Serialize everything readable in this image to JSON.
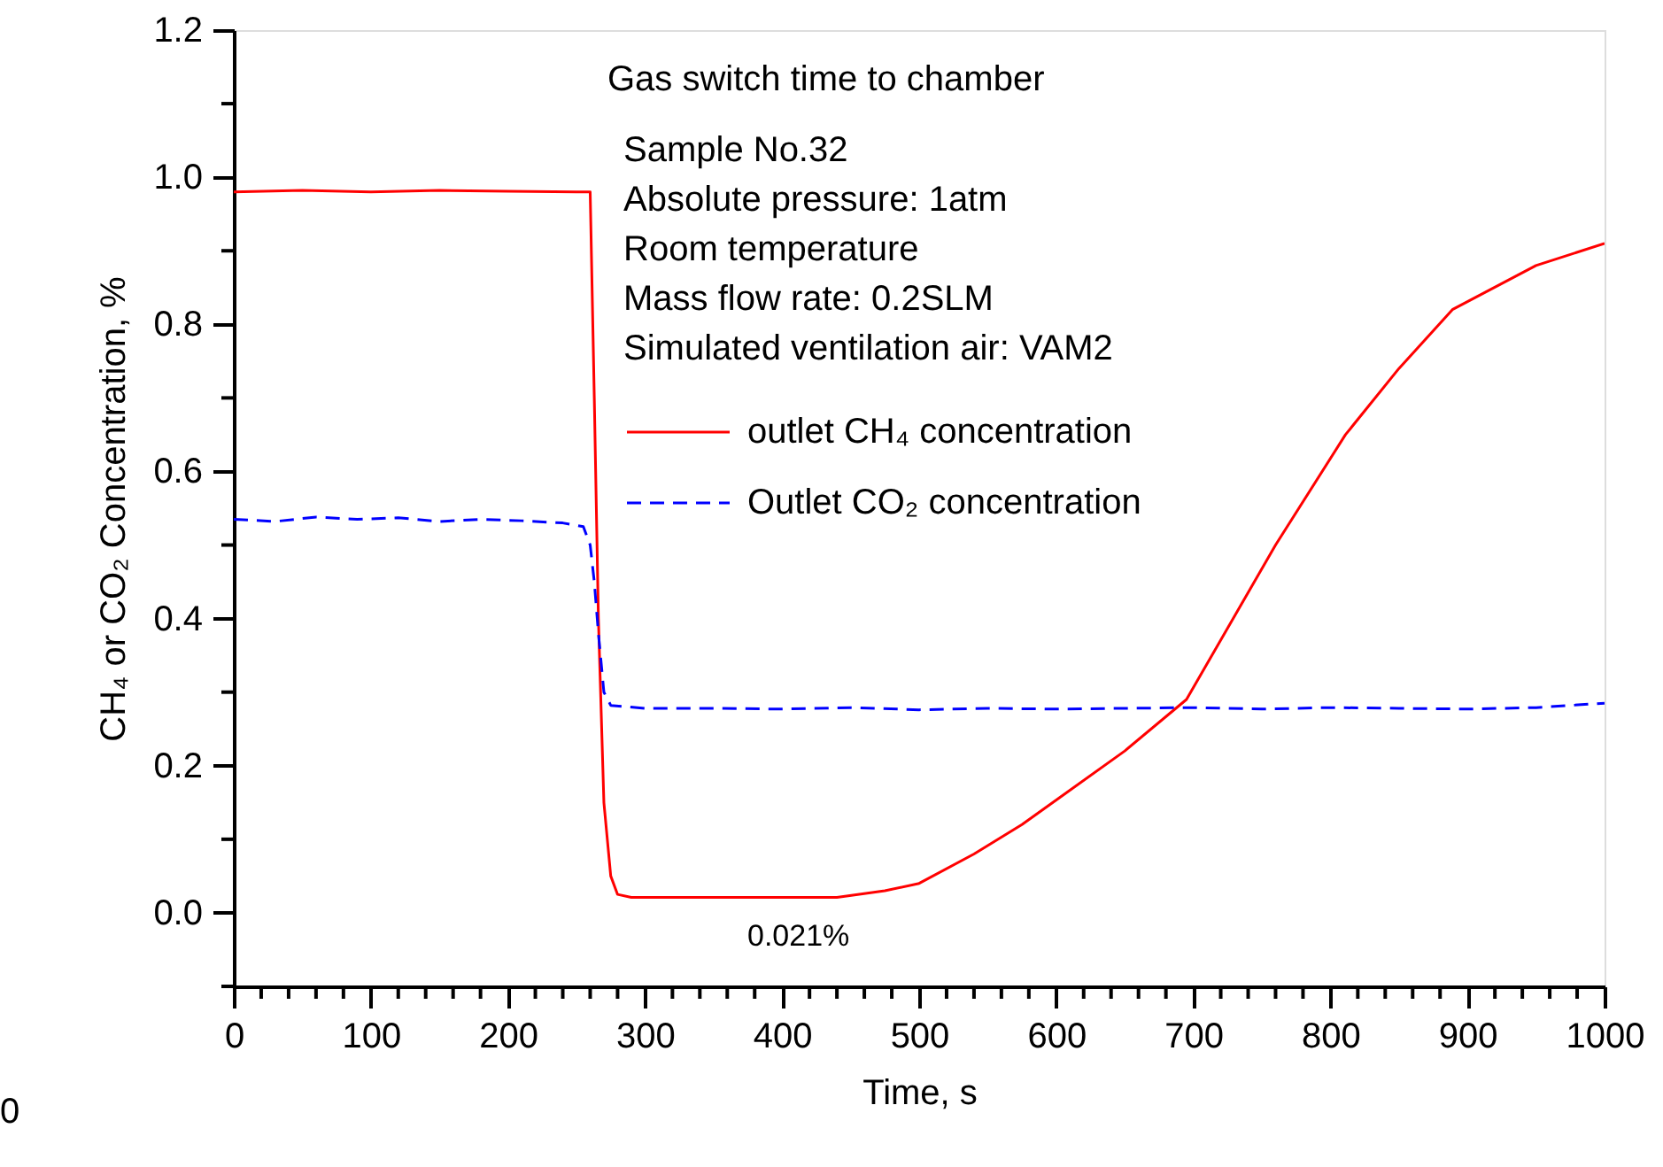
{
  "chart_data": {
    "type": "line",
    "xlabel": "Time, s",
    "ylabel": "CH₄ or CO₂ Concentration, %",
    "xlim": [
      0,
      1000
    ],
    "ylim": [
      -0.1,
      1.2
    ],
    "xticks": [
      0,
      {
        "value": 20,
        "label": null
      },
      {
        "value": 40,
        "label": null
      },
      {
        "value": 60,
        "label": null
      },
      {
        "value": 80,
        "label": null
      },
      100,
      {
        "value": 120,
        "label": null
      },
      {
        "value": 140,
        "label": null
      },
      {
        "value": 160,
        "label": null
      },
      {
        "value": 180,
        "label": null
      },
      200,
      {
        "value": 220,
        "label": null
      },
      {
        "value": 240,
        "label": null
      },
      {
        "value": 260,
        "label": null
      },
      {
        "value": 280,
        "label": null
      },
      300,
      {
        "value": 320,
        "label": null
      },
      {
        "value": 340,
        "label": null
      },
      {
        "value": 360,
        "label": null
      },
      {
        "value": 380,
        "label": null
      },
      400,
      {
        "value": 420,
        "label": null
      },
      {
        "value": 440,
        "label": null
      },
      {
        "value": 460,
        "label": null
      },
      {
        "value": 480,
        "label": null
      },
      500,
      {
        "value": 520,
        "label": null
      },
      {
        "value": 540,
        "label": null
      },
      {
        "value": 560,
        "label": null
      },
      {
        "value": 580,
        "label": null
      },
      600,
      {
        "value": 620,
        "label": null
      },
      {
        "value": 640,
        "label": null
      },
      {
        "value": 660,
        "label": null
      },
      {
        "value": 680,
        "label": null
      },
      700,
      {
        "value": 720,
        "label": null
      },
      {
        "value": 740,
        "label": null
      },
      {
        "value": 760,
        "label": null
      },
      {
        "value": 780,
        "label": null
      },
      800,
      {
        "value": 820,
        "label": null
      },
      {
        "value": 840,
        "label": null
      },
      {
        "value": 860,
        "label": null
      },
      {
        "value": 880,
        "label": null
      },
      900,
      {
        "value": 920,
        "label": null
      },
      {
        "value": 940,
        "label": null
      },
      {
        "value": 960,
        "label": null
      },
      {
        "value": 980,
        "label": null
      },
      1000
    ],
    "yticks": [
      {
        "value": -0.1,
        "label": null
      },
      {
        "value": 0,
        "label": "0.0"
      },
      {
        "value": 0.1,
        "label": null
      },
      0.2,
      {
        "value": 0.3,
        "label": null
      },
      0.4,
      {
        "value": 0.5,
        "label": null
      },
      0.6,
      {
        "value": 0.7,
        "label": null
      },
      0.8,
      {
        "value": 0.9,
        "label": null
      },
      {
        "value": 1,
        "label": "1.0"
      },
      {
        "value": 1.1,
        "label": null
      },
      1.2
    ],
    "grid": false,
    "legend": "top",
    "marker": "none",
    "series": [
      {
        "name": "outlet CH₄ concentration",
        "color": "#ff0000",
        "line_style": "solid",
        "x": [
          0,
          50,
          100,
          150,
          200,
          250,
          260,
          263,
          266,
          270,
          275,
          280,
          290,
          350,
          440,
          475,
          500,
          540,
          575,
          605,
          650,
          695,
          760,
          811,
          850,
          889,
          950,
          1000
        ],
        "values": [
          0.98,
          0.982,
          0.98,
          0.982,
          0.981,
          0.98,
          0.98,
          0.7,
          0.4,
          0.15,
          0.05,
          0.025,
          0.021,
          0.021,
          0.021,
          0.03,
          0.04,
          0.08,
          0.12,
          0.16,
          0.22,
          0.29,
          0.5,
          0.65,
          0.74,
          0.82,
          0.88,
          0.91
        ]
      },
      {
        "name": "Outlet CO₂ concentration",
        "color": "#0000ff",
        "line_style": "dashed",
        "x": [
          0,
          30,
          60,
          90,
          120,
          150,
          180,
          210,
          240,
          255,
          260,
          263,
          266,
          270,
          275,
          300,
          350,
          400,
          450,
          500,
          550,
          600,
          650,
          700,
          750,
          800,
          850,
          900,
          950,
          1000
        ],
        "values": [
          0.535,
          0.532,
          0.538,
          0.535,
          0.537,
          0.532,
          0.535,
          0.533,
          0.53,
          0.525,
          0.5,
          0.45,
          0.38,
          0.3,
          0.282,
          0.278,
          0.278,
          0.277,
          0.279,
          0.276,
          0.278,
          0.277,
          0.278,
          0.279,
          0.277,
          0.279,
          0.278,
          0.277,
          0.279,
          0.285
        ]
      }
    ],
    "annotations": [
      "Gas switch time to chamber",
      "Sample No.32",
      "Absolute pressure: 1atm",
      "Room temperature",
      "Mass flow rate: 0.2SLM",
      "Simulated ventilation air: VAM2",
      "0.021%",
      "0"
    ]
  }
}
